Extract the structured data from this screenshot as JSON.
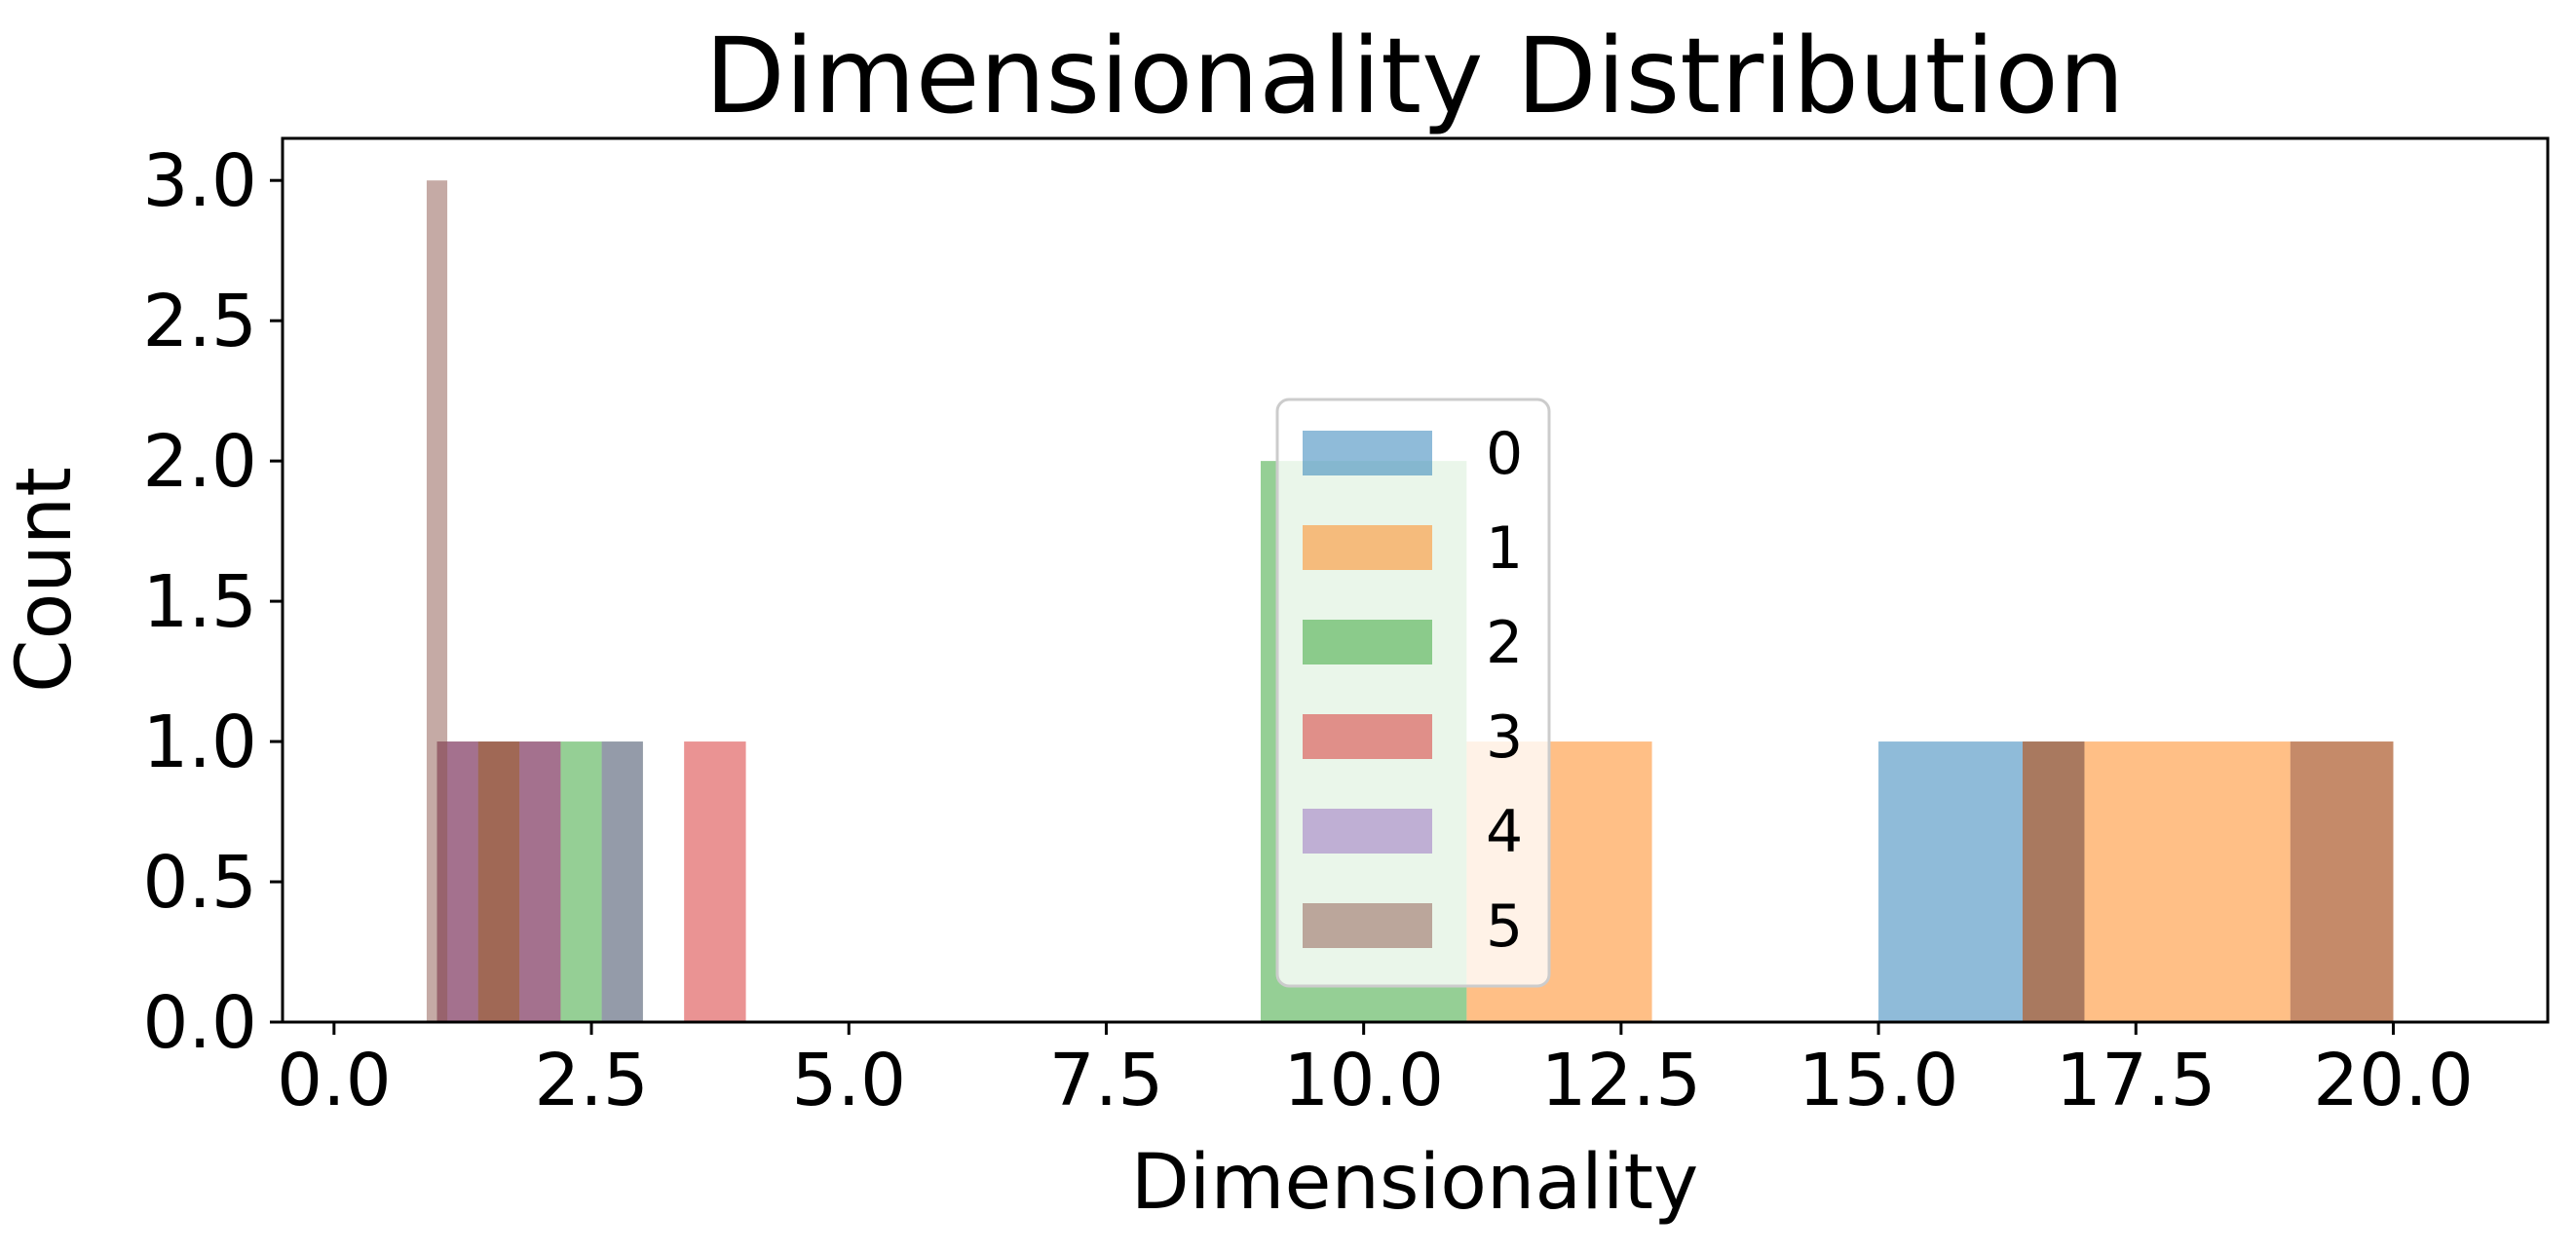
{
  "chart_data": {
    "type": "histogram",
    "title": "Dimensionality Distribution",
    "xlabel": "Dimensionality",
    "ylabel": "Count",
    "xlim": [
      -0.5,
      21.5
    ],
    "ylim": [
      0,
      3.15
    ],
    "xticks": [
      0.0,
      2.5,
      5.0,
      7.5,
      10.0,
      12.5,
      15.0,
      17.5,
      20.0
    ],
    "xtick_labels": [
      "0.0",
      "2.5",
      "5.0",
      "7.5",
      "10.0",
      "12.5",
      "15.0",
      "17.5",
      "20.0"
    ],
    "yticks": [
      0.0,
      0.5,
      1.0,
      1.5,
      2.0,
      2.5,
      3.0
    ],
    "ytick_labels": [
      "0.0",
      "0.5",
      "1.0",
      "1.5",
      "2.0",
      "2.5",
      "3.0"
    ],
    "grid": false,
    "legend_position": "center",
    "bar_opacity": 0.5,
    "series": [
      {
        "name": "0",
        "color": "#1f77b4",
        "bins": [
          {
            "x0": 15.0,
            "x1": 16.4,
            "count": 1
          },
          {
            "x0": 16.4,
            "x1": 17.0,
            "count": 1
          }
        ]
      },
      {
        "name": "1",
        "color": "#ff7f0e",
        "bins": [
          {
            "x0": 11.0,
            "x1": 12.8,
            "count": 1
          },
          {
            "x0": 16.4,
            "x1": 17.0,
            "count": 1
          },
          {
            "x0": 17.0,
            "x1": 19.0,
            "count": 1
          },
          {
            "x0": 19.0,
            "x1": 20.0,
            "count": 1
          }
        ]
      },
      {
        "name": "2",
        "color": "#2ca02c",
        "bins": [
          {
            "x0": 1.0,
            "x1": 1.4,
            "count": 1
          },
          {
            "x0": 1.4,
            "x1": 1.8,
            "count": 1
          },
          {
            "x0": 1.8,
            "x1": 2.2,
            "count": 1
          },
          {
            "x0": 2.2,
            "x1": 2.6,
            "count": 1
          },
          {
            "x0": 2.6,
            "x1": 3.0,
            "count": 1
          },
          {
            "x0": 9.0,
            "x1": 11.0,
            "count": 2
          }
        ]
      },
      {
        "name": "3",
        "color": "#d62728",
        "bins": [
          {
            "x0": 1.0,
            "x1": 1.4,
            "count": 1
          },
          {
            "x0": 1.4,
            "x1": 1.8,
            "count": 1
          },
          {
            "x0": 1.8,
            "x1": 2.2,
            "count": 1
          },
          {
            "x0": 3.4,
            "x1": 4.0,
            "count": 1
          }
        ]
      },
      {
        "name": "4",
        "color": "#9467bd",
        "bins": [
          {
            "x0": 1.0,
            "x1": 1.4,
            "count": 1
          },
          {
            "x0": 1.8,
            "x1": 2.2,
            "count": 1
          },
          {
            "x0": 2.6,
            "x1": 3.0,
            "count": 1
          }
        ]
      },
      {
        "name": "5",
        "color": "#8c564b",
        "bins": [
          {
            "x0": 0.9,
            "x1": 1.1,
            "count": 3
          },
          {
            "x0": 1.4,
            "x1": 1.8,
            "count": 1
          },
          {
            "x0": 16.4,
            "x1": 17.0,
            "count": 1
          },
          {
            "x0": 19.0,
            "x1": 20.0,
            "count": 1
          }
        ]
      }
    ]
  }
}
